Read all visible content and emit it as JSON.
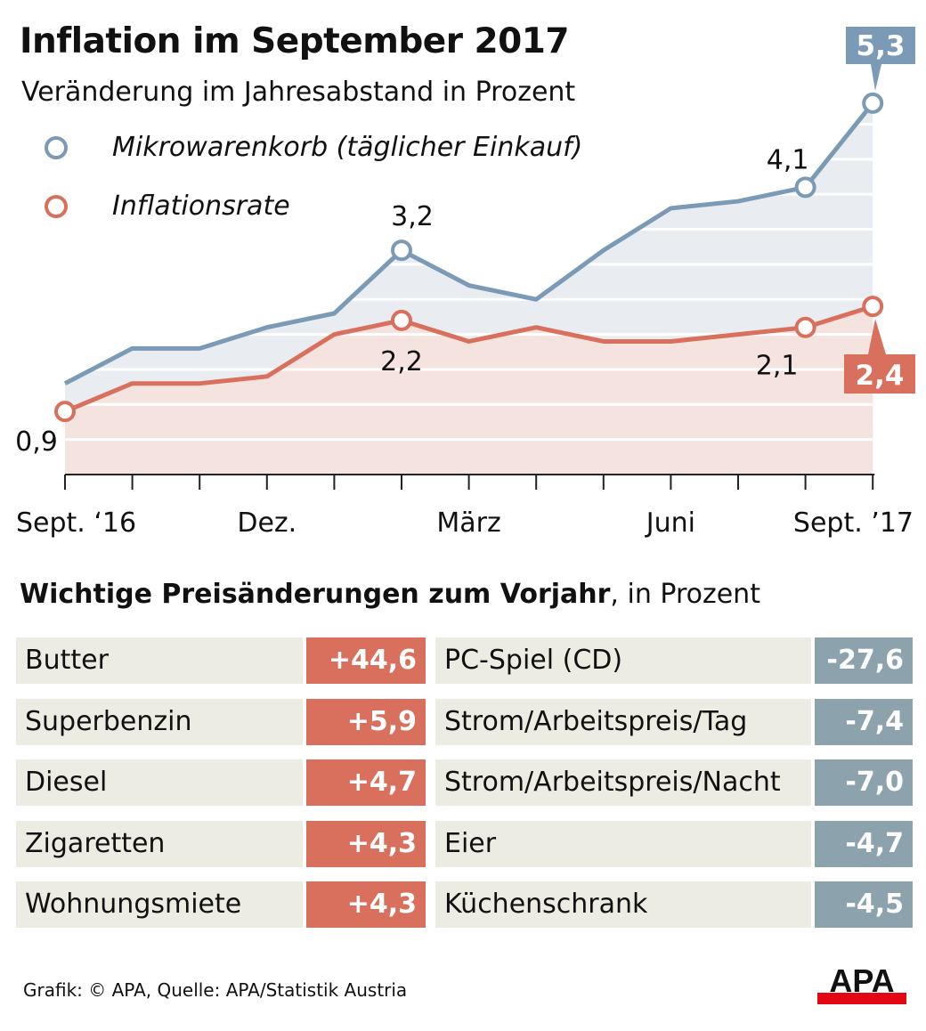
{
  "title": "Inflation im September 2017",
  "subtitle": "Veränderung im Jahresabstand in Prozent",
  "chart_data": {
    "type": "line",
    "title": "Inflation im September 2017",
    "subtitle": "Veränderung im Jahresabstand in Prozent",
    "x": [
      "2016-09",
      "2016-10",
      "2016-11",
      "2016-12",
      "2017-01",
      "2017-02",
      "2017-03",
      "2017-04",
      "2017-05",
      "2017-06",
      "2017-07",
      "2017-08",
      "2017-09"
    ],
    "x_tick_labels": [
      {
        "index": 0,
        "label": "Sept. ‘16"
      },
      {
        "index": 3,
        "label": "Dez."
      },
      {
        "index": 6,
        "label": "März"
      },
      {
        "index": 9,
        "label": "Juni"
      },
      {
        "index": 12,
        "label": "Sept. ’17"
      }
    ],
    "series": [
      {
        "name": "Mikrowarenkorb (täglicher Einkauf)",
        "color": "#7a9ab5",
        "fill": "#e9ecf0",
        "values": [
          1.3,
          1.8,
          1.8,
          2.1,
          2.3,
          3.2,
          2.7,
          2.5,
          3.2,
          3.8,
          3.9,
          4.1,
          5.3
        ]
      },
      {
        "name": "Inflationsrate",
        "color": "#d9705d",
        "fill": "#f5e3df",
        "values": [
          0.9,
          1.3,
          1.3,
          1.4,
          2.0,
          2.2,
          1.9,
          2.1,
          1.9,
          1.9,
          2.0,
          2.1,
          2.4
        ]
      }
    ],
    "annotations": [
      {
        "series": 0,
        "index": 5,
        "label": "3,2"
      },
      {
        "series": 0,
        "index": 11,
        "label": "4,1"
      },
      {
        "series": 0,
        "index": 12,
        "label": "5,3",
        "boxed": true
      },
      {
        "series": 1,
        "index": 0,
        "label": "0,9"
      },
      {
        "series": 1,
        "index": 5,
        "label": "2,2"
      },
      {
        "series": 1,
        "index": 11,
        "label": "2,1"
      },
      {
        "series": 1,
        "index": 12,
        "label": "2,4",
        "boxed": true
      }
    ],
    "ylim": [
      0,
      5.5
    ],
    "grid": true,
    "legend": "top-left"
  },
  "table": {
    "title_bold": "Wichtige Preisänderungen zum Vorjahr",
    "title_rest": ", in Prozent",
    "increase_color": "#d9705d",
    "decrease_color": "#8ca3ad",
    "increases": [
      {
        "label": "Butter",
        "value": "+44,6"
      },
      {
        "label": "Superbenzin",
        "value": "+5,9"
      },
      {
        "label": "Diesel",
        "value": "+4,7"
      },
      {
        "label": "Zigaretten",
        "value": "+4,3"
      },
      {
        "label": "Wohnungsmiete",
        "value": "+4,3"
      }
    ],
    "decreases": [
      {
        "label": "PC-Spiel (CD)",
        "value": "-27,6"
      },
      {
        "label": "Strom/Arbeitspreis/Tag",
        "value": "-7,4"
      },
      {
        "label": "Strom/Arbeitspreis/Nacht",
        "value": "-7,0"
      },
      {
        "label": "Eier",
        "value": "-4,7"
      },
      {
        "label": "Küchenschrank",
        "value": "-4,5"
      }
    ]
  },
  "footer": "Grafik: © APA, Quelle: APA/Statistik Austria",
  "logo": "APA"
}
